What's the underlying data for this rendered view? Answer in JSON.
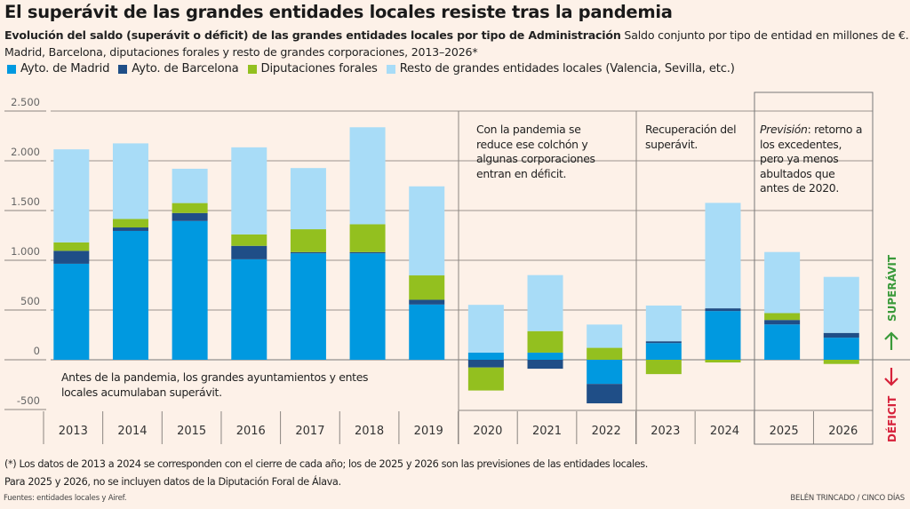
{
  "header": {
    "title": "El superávit de las grandes entidades locales resiste tras la pandemia",
    "subtitle_bold": "Evolución del saldo (superávit o déficit) de las grandes entidades locales por tipo de Administración",
    "subtitle_rest": " Saldo conjunto por tipo de entidad en millones de €.",
    "subtitle_line2": "Madrid, Barcelona, diputaciones forales y resto de grandes corporaciones, 2013–2026*"
  },
  "annotations": {
    "pre": "Antes de la pandemia, los grandes ayuntamientos y entes locales acumulaban superávit.",
    "pandemic": "Con la pandemia se reduce ese colchón y algunas corporaciones entran en déficit.",
    "recovery": "Recuperación del superávit.",
    "forecast_italic": "Previsión",
    "forecast_rest": ": retorno a los excedentes, pero ya menos abultados que antes de 2020.",
    "surplus": "SUPERÁVIT",
    "deficit": "DÉFICIT"
  },
  "footer": {
    "note1": "(*) Los datos de 2013 a 2024 se corresponden con el cierre de cada año; los de 2025 y 2026 son las previsiones de las entidades locales.",
    "note2": "Para 2025 y 2026, no se incluyen datos de la Diputación Foral de Álava.",
    "source": "Fuentes: entidades locales y Airef.",
    "credit": "BELÉN TRINCADO / CINCO DÍAS"
  },
  "colors": {
    "surplus": "#3a9a3a",
    "deficit": "#d6213a"
  },
  "chart_data": {
    "type": "bar",
    "stacked": true,
    "ylabel": "",
    "ylim": [
      -500,
      2500
    ],
    "yticks": [
      2500,
      2000,
      1500,
      1000,
      500,
      0,
      -500
    ],
    "ytick_labels": [
      "2.500",
      "2.000",
      "1.500",
      "1.000",
      "500",
      "0",
      "-500"
    ],
    "grid": true,
    "legend_placement": "top",
    "categories": [
      "2013",
      "2014",
      "2015",
      "2016",
      "2017",
      "2018",
      "2019",
      "2020",
      "2021",
      "2022",
      "2023",
      "2024",
      "2025",
      "2026"
    ],
    "series": [
      {
        "name": "Ayto. de Madrid",
        "color": "#0099e0",
        "values": [
          965,
          1295,
          1395,
          1010,
          1070,
          1070,
          555,
          72,
          72,
          -243,
          168,
          490,
          355,
          222
        ]
      },
      {
        "name": "Ayto. de Barcelona",
        "color": "#1f4e87",
        "values": [
          130,
          35,
          80,
          135,
          12,
          12,
          48,
          -78,
          -90,
          -195,
          18,
          27,
          45,
          48
        ]
      },
      {
        "name": "Diputaciones forales",
        "color": "#93c01f",
        "values": [
          85,
          85,
          100,
          115,
          230,
          280,
          245,
          -231,
          216,
          120,
          -144,
          -27,
          69,
          -42
        ]
      },
      {
        "name": "Resto de grandes entidades locales (Valencia, Sevilla, etc.)",
        "color": "#a8dcf7",
        "values": [
          935,
          760,
          345,
          875,
          615,
          975,
          895,
          480,
          563,
          234,
          359,
          1060,
          614,
          563
        ]
      }
    ]
  }
}
